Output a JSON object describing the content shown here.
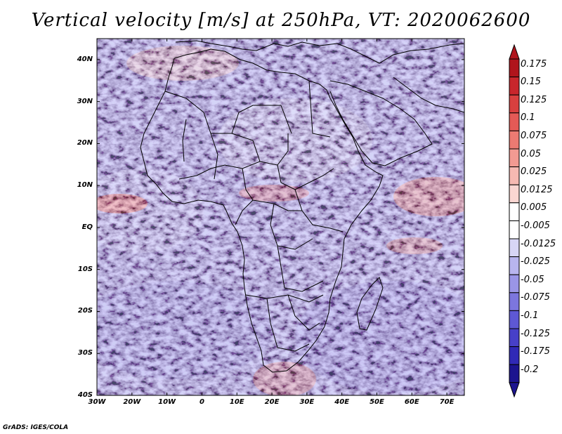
{
  "title": "Vertical velocity [m/s] at 250hPa, VT: 2020062600",
  "footer": "GrADS: IGES/COLA",
  "lat_labels": [
    "40N",
    "30N",
    "20N",
    "10N",
    "EQ",
    "10S",
    "20S",
    "30S",
    "40S"
  ],
  "lon_labels": [
    "30W",
    "20W",
    "10W",
    "0",
    "10E",
    "20E",
    "30E",
    "40E",
    "50E",
    "60E",
    "70E"
  ],
  "extent": {
    "lon_min": -30,
    "lon_max": 75,
    "lat_min": -40,
    "lat_max": 45
  },
  "colorbar": {
    "labels": [
      "0.175",
      "0.15",
      "0.125",
      "0.1",
      "0.075",
      "0.05",
      "0.025",
      "0.0125",
      "0.005",
      "-0.005",
      "-0.0125",
      "-0.025",
      "-0.05",
      "-0.075",
      "-0.1",
      "-0.125",
      "-0.175",
      "-0.2"
    ],
    "colors": [
      "#b0141c",
      "#c8262c",
      "#d8403f",
      "#e45a56",
      "#ec7a72",
      "#f29a92",
      "#f6b9b2",
      "#fad6d2",
      "#ffffff",
      "#ffffff",
      "#d7d6f6",
      "#b8b5ef",
      "#9a95e7",
      "#7c76de",
      "#5e58d4",
      "#4740c8",
      "#3029b6",
      "#1c148f"
    ]
  }
}
